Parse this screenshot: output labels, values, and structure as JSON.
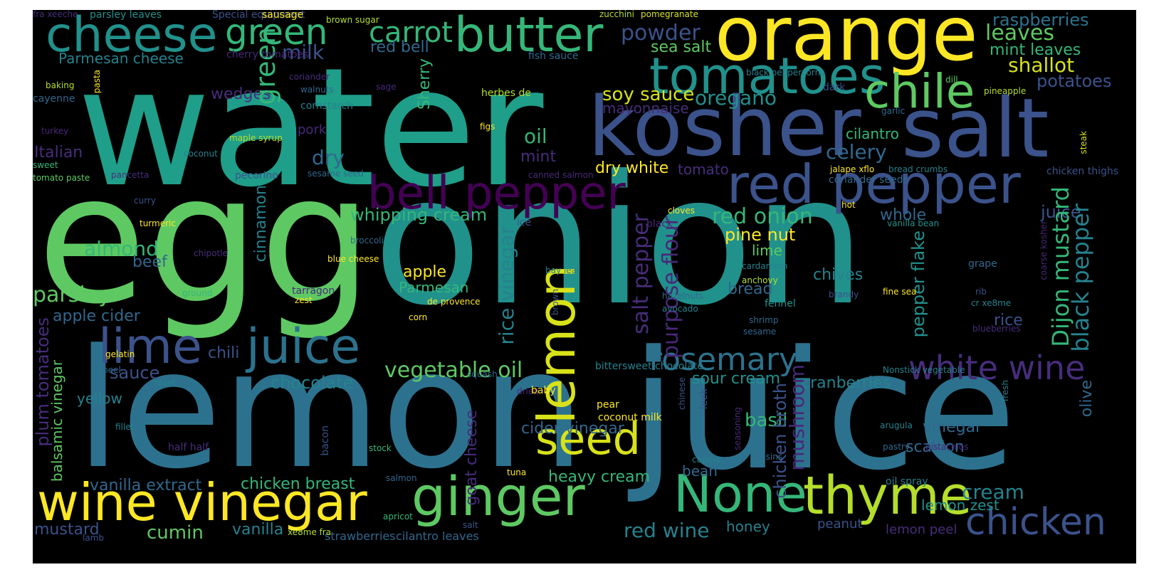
{
  "colors": {
    "background": "#000000",
    "palette": [
      "#440154",
      "#482878",
      "#3e4989",
      "#31688e",
      "#26828e",
      "#1f9e89",
      "#35b779",
      "#6ece58",
      "#b5de2b",
      "#fde725"
    ]
  },
  "words": [
    {
      "text": "water",
      "c": "#1f9e89"
    },
    {
      "text": "egg",
      "c": "#5ec962"
    },
    {
      "text": "onion",
      "c": "#21918c"
    },
    {
      "text": "lemon",
      "c": "#2c728e"
    },
    {
      "text": "juice",
      "c": "#2c728e"
    },
    {
      "text": "orange",
      "c": "#fde725"
    },
    {
      "text": "kosher",
      "c": "#3b528b"
    },
    {
      "text": "salt",
      "c": "#3b528b"
    },
    {
      "text": "cheese",
      "c": "#21918c"
    },
    {
      "text": "butter",
      "c": "#35b779"
    },
    {
      "text": "green",
      "c": "#35b779"
    },
    {
      "text": "tomatoes",
      "c": "#21918c"
    },
    {
      "text": "chile",
      "c": "#5ec962"
    },
    {
      "text": "red pepper",
      "c": "#3b528b"
    },
    {
      "text": "bell pepper",
      "c": "#440154"
    },
    {
      "text": "lime",
      "c": "#3b528b"
    },
    {
      "text": "juice",
      "c": "#2c728e"
    },
    {
      "text": "lemon",
      "c": "#d8e219"
    },
    {
      "text": "seed",
      "c": "#d8e219"
    },
    {
      "text": "wine vinegar",
      "c": "#fde725"
    },
    {
      "text": "ginger",
      "c": "#5ec962"
    },
    {
      "text": "None",
      "c": "#35b779"
    },
    {
      "text": "thyme",
      "c": "#b5de2b"
    },
    {
      "text": "chicken",
      "c": "#3b528b"
    },
    {
      "text": "white wine",
      "c": "#472d7b"
    },
    {
      "text": "rosemary",
      "c": "#2c728e"
    },
    {
      "text": "carrot",
      "c": "#35b779"
    },
    {
      "text": "powder",
      "c": "#3b528b"
    },
    {
      "text": "leaves",
      "c": "#5ec962"
    },
    {
      "text": "raspberries",
      "c": "#2c728e"
    },
    {
      "text": "mint leaves",
      "c": "#35b779"
    },
    {
      "text": "shallot",
      "c": "#d8e219"
    },
    {
      "text": "potatoes",
      "c": "#3b528b"
    },
    {
      "text": "Parmesan cheese",
      "c": "#26828e"
    },
    {
      "text": "milk",
      "c": "#3b528b"
    },
    {
      "text": "red bell",
      "c": "#31688e"
    },
    {
      "text": "sea salt",
      "c": "#5ec962"
    },
    {
      "text": "soy sauce",
      "c": "#d8e219"
    },
    {
      "text": "oregano",
      "c": "#21918c"
    },
    {
      "text": "mayonnaise",
      "c": "#472d7b"
    },
    {
      "text": "cilantro",
      "c": "#35b779"
    },
    {
      "text": "celery",
      "c": "#31688e"
    },
    {
      "text": "oil",
      "c": "#35b779"
    },
    {
      "text": "dry",
      "c": "#31688e"
    },
    {
      "text": "mint",
      "c": "#472d7b"
    },
    {
      "text": "Italian",
      "c": "#472d7b"
    },
    {
      "text": "pork",
      "c": "#482878"
    },
    {
      "text": "wedges",
      "c": "#472d7b"
    },
    {
      "text": "dry white",
      "c": "#fde725"
    },
    {
      "text": "tomato",
      "c": "#472d7b"
    },
    {
      "text": "whipping cream",
      "c": "#35b779"
    },
    {
      "text": "red onion",
      "c": "#35b779"
    },
    {
      "text": "whole",
      "c": "#31688e"
    },
    {
      "text": "juice",
      "c": "#3b528b"
    },
    {
      "text": "pine nut",
      "c": "#fde725"
    },
    {
      "text": "lime",
      "c": "#5ec962"
    },
    {
      "text": "almond",
      "c": "#35b779"
    },
    {
      "text": "beef",
      "c": "#31688e"
    },
    {
      "text": "parsley",
      "c": "#5ec962"
    },
    {
      "text": "apple",
      "c": "#fde725"
    },
    {
      "text": "Parmesan",
      "c": "#35b779"
    },
    {
      "text": "apple cider",
      "c": "#31688e"
    },
    {
      "text": "chives",
      "c": "#26828e"
    },
    {
      "text": "bread",
      "c": "#31688e"
    },
    {
      "text": "rice",
      "c": "#3b528b"
    },
    {
      "text": "vegetable oil",
      "c": "#5ec962"
    },
    {
      "text": "chocolate",
      "c": "#26828e"
    },
    {
      "text": "sauce",
      "c": "#3b528b"
    },
    {
      "text": "chili",
      "c": "#3b528b"
    },
    {
      "text": "sour cream",
      "c": "#21918c"
    },
    {
      "text": "cranberries",
      "c": "#26828e"
    },
    {
      "text": "yellow",
      "c": "#26828e"
    },
    {
      "text": "basil",
      "c": "#35b779"
    },
    {
      "text": "cider vinegar",
      "c": "#31688e"
    },
    {
      "text": "vinegar",
      "c": "#31688e"
    },
    {
      "text": "scallion",
      "c": "#31688e"
    },
    {
      "text": "cream",
      "c": "#26828e"
    },
    {
      "text": "vanilla extract",
      "c": "#31688e"
    },
    {
      "text": "chicken breast",
      "c": "#35b779"
    },
    {
      "text": "heavy cream",
      "c": "#35b779"
    },
    {
      "text": "bean",
      "c": "#31688e"
    },
    {
      "text": "lemon zest",
      "c": "#21918c"
    },
    {
      "text": "mustard",
      "c": "#3b528b"
    },
    {
      "text": "cumin",
      "c": "#5ec962"
    },
    {
      "text": "vanilla",
      "c": "#26828e"
    },
    {
      "text": "red wine",
      "c": "#26828e"
    },
    {
      "text": "honey",
      "c": "#26828e"
    },
    {
      "text": "lemon peel",
      "c": "#472d7b"
    },
    {
      "text": "strawberries",
      "c": "#31688e"
    },
    {
      "text": "cilantro leaves",
      "c": "#31688e"
    },
    {
      "text": "peanut",
      "c": "#3b528b"
    },
    {
      "text": "green",
      "c": "#35b779"
    },
    {
      "text": "Sherry",
      "c": "#35b779"
    },
    {
      "text": "rice vinegar",
      "c": "#26828e"
    },
    {
      "text": "salt pepper",
      "c": "#472d7b"
    },
    {
      "text": "purpose flour",
      "c": "#482878"
    },
    {
      "text": "cinnamon",
      "c": "#26828e"
    },
    {
      "text": "Dijon mustard",
      "c": "#35b779"
    },
    {
      "text": "black pepper",
      "c": "#26828e"
    },
    {
      "text": "pepper flake",
      "c": "#21918c"
    },
    {
      "text": "plum tomatoes",
      "c": "#472d7b"
    },
    {
      "text": "balsamic vinegar",
      "c": "#5ec962"
    },
    {
      "text": "goat cheese",
      "c": "#472d7b"
    },
    {
      "text": "mushroom",
      "c": "#482878"
    },
    {
      "text": "chicken broth",
      "c": "#3b528b"
    },
    {
      "text": "olive",
      "c": "#31688e"
    },
    {
      "text": "parsley leaves",
      "c": "#21918c"
    },
    {
      "text": "Special equipment",
      "c": "#3b528b"
    },
    {
      "text": "sausage",
      "c": "#fde725"
    },
    {
      "text": "brown sugar",
      "c": "#b5de2b"
    },
    {
      "text": "zucchini",
      "c": "#b5de2b"
    },
    {
      "text": "pomegranate",
      "c": "#d8e219"
    },
    {
      "text": "cherry tomatoes",
      "c": "#482878"
    },
    {
      "text": "fish sauce",
      "c": "#31688e"
    },
    {
      "text": "black peppercorns",
      "c": "#26828e"
    },
    {
      "text": "dark",
      "c": "#3b528b"
    },
    {
      "text": "dill",
      "c": "#5ec962"
    },
    {
      "text": "pineapple",
      "c": "#b5de2b"
    },
    {
      "text": "coriander",
      "c": "#472d7b"
    },
    {
      "text": "baking",
      "c": "#b5de2b"
    },
    {
      "text": "pasta",
      "c": "#fde725"
    },
    {
      "text": "walnuts",
      "c": "#31688e"
    },
    {
      "text": "sage",
      "c": "#482878"
    },
    {
      "text": "herbes de",
      "c": "#b5de2b"
    },
    {
      "text": "cayenne",
      "c": "#31688e"
    },
    {
      "text": "cornstarch",
      "c": "#26828e"
    },
    {
      "text": "garlic",
      "c": "#31688e"
    },
    {
      "text": "turkey",
      "c": "#482878"
    },
    {
      "text": "maple syrup",
      "c": "#b5de2b"
    },
    {
      "text": "figs",
      "c": "#fde725"
    },
    {
      "text": "coconut",
      "c": "#26828e"
    },
    {
      "text": "sweet",
      "c": "#35b779"
    },
    {
      "text": "tomato paste",
      "c": "#5ec962"
    },
    {
      "text": "pancetta",
      "c": "#472d7b"
    },
    {
      "text": "pecorino",
      "c": "#3b528b"
    },
    {
      "text": "sesame seed",
      "c": "#31688e"
    },
    {
      "text": "canned salmon",
      "c": "#482878"
    },
    {
      "text": "jalape xflo",
      "c": "#fde725"
    },
    {
      "text": "bread crumbs",
      "c": "#26828e"
    },
    {
      "text": "chicken thighs",
      "c": "#3b528b"
    },
    {
      "text": "steak",
      "c": "#d8e219"
    },
    {
      "text": "coriander seeds",
      "c": "#31688e"
    },
    {
      "text": "hot",
      "c": "#fde725"
    },
    {
      "text": "curry",
      "c": "#3b528b"
    },
    {
      "text": "cloves",
      "c": "#fde725"
    },
    {
      "text": "turmeric",
      "c": "#fde725"
    },
    {
      "text": "ice",
      "c": "#3b528b"
    },
    {
      "text": "black",
      "c": "#482878"
    },
    {
      "text": "vanilla bean",
      "c": "#21918c"
    },
    {
      "text": "coarse kosher",
      "c": "#482878"
    },
    {
      "text": "broccoli",
      "c": "#31688e"
    },
    {
      "text": "chipotle",
      "c": "#472d7b"
    },
    {
      "text": "blue cheese",
      "c": "#fde725"
    },
    {
      "text": "bay leaf",
      "c": "#26828e"
    },
    {
      "text": "cardamom",
      "c": "#26828e"
    },
    {
      "text": "anchovy",
      "c": "#b5de2b"
    },
    {
      "text": "grape",
      "c": "#31688e"
    },
    {
      "text": "ground",
      "c": "#35b779"
    },
    {
      "text": "tarragon",
      "c": "#472d7b"
    },
    {
      "text": "zest",
      "c": "#fde725"
    },
    {
      "text": "de provence",
      "c": "#fde725"
    },
    {
      "text": "brown",
      "c": "#3b528b"
    },
    {
      "text": "hazelnuts",
      "c": "#31688e"
    },
    {
      "text": "avocado",
      "c": "#26828e"
    },
    {
      "text": "brandy",
      "c": "#3b528b"
    },
    {
      "text": "fine sea",
      "c": "#fde725"
    },
    {
      "text": "rib",
      "c": "#3b528b"
    },
    {
      "text": "cr xe8me",
      "c": "#26828e"
    },
    {
      "text": "fennel",
      "c": "#21918c"
    },
    {
      "text": "corn",
      "c": "#fde725"
    },
    {
      "text": "shrimp",
      "c": "#31688e"
    },
    {
      "text": "sesame",
      "c": "#31688e"
    },
    {
      "text": "blueberries",
      "c": "#472d7b"
    },
    {
      "text": "gelatin",
      "c": "#fde725"
    },
    {
      "text": "peel",
      "c": "#31688e"
    },
    {
      "text": "roast",
      "c": "#26828e"
    },
    {
      "text": "bittersweet chocolate",
      "c": "#26828e"
    },
    {
      "text": "squash",
      "c": "#31688e"
    },
    {
      "text": "Nonstick vegetable",
      "c": "#26828e"
    },
    {
      "text": "dried",
      "c": "#482878"
    },
    {
      "text": "chinese",
      "c": "#3b528b"
    },
    {
      "text": "leek",
      "c": "#3b528b"
    },
    {
      "text": "seasoning",
      "c": "#482878"
    },
    {
      "text": "fresh",
      "c": "#26828e"
    },
    {
      "text": "baby",
      "c": "#fde725"
    },
    {
      "text": "pear",
      "c": "#fde725"
    },
    {
      "text": "coconut milk",
      "c": "#fde725"
    },
    {
      "text": "arugula",
      "c": "#26828e"
    },
    {
      "text": "fillet",
      "c": "#26828e"
    },
    {
      "text": "bacon",
      "c": "#3b528b"
    },
    {
      "text": "pistachios",
      "c": "#482878"
    },
    {
      "text": "pastry",
      "c": "#31688e"
    },
    {
      "text": "half half",
      "c": "#472d7b"
    },
    {
      "text": "stock",
      "c": "#35b779"
    },
    {
      "text": "capers",
      "c": "#26828e"
    },
    {
      "text": "raisins",
      "c": "#31688e"
    },
    {
      "text": "salmon",
      "c": "#31688e"
    },
    {
      "text": "tuna",
      "c": "#fde725"
    },
    {
      "text": "oil spray",
      "c": "#26828e"
    },
    {
      "text": "apricot",
      "c": "#35b779"
    },
    {
      "text": "salt",
      "c": "#3b528b"
    },
    {
      "text": "xe8me fra",
      "c": "#b5de2b"
    },
    {
      "text": "lamb",
      "c": "#3b528b"
    },
    {
      "text": "fra xeeche",
      "c": "#472d7b"
    }
  ]
}
